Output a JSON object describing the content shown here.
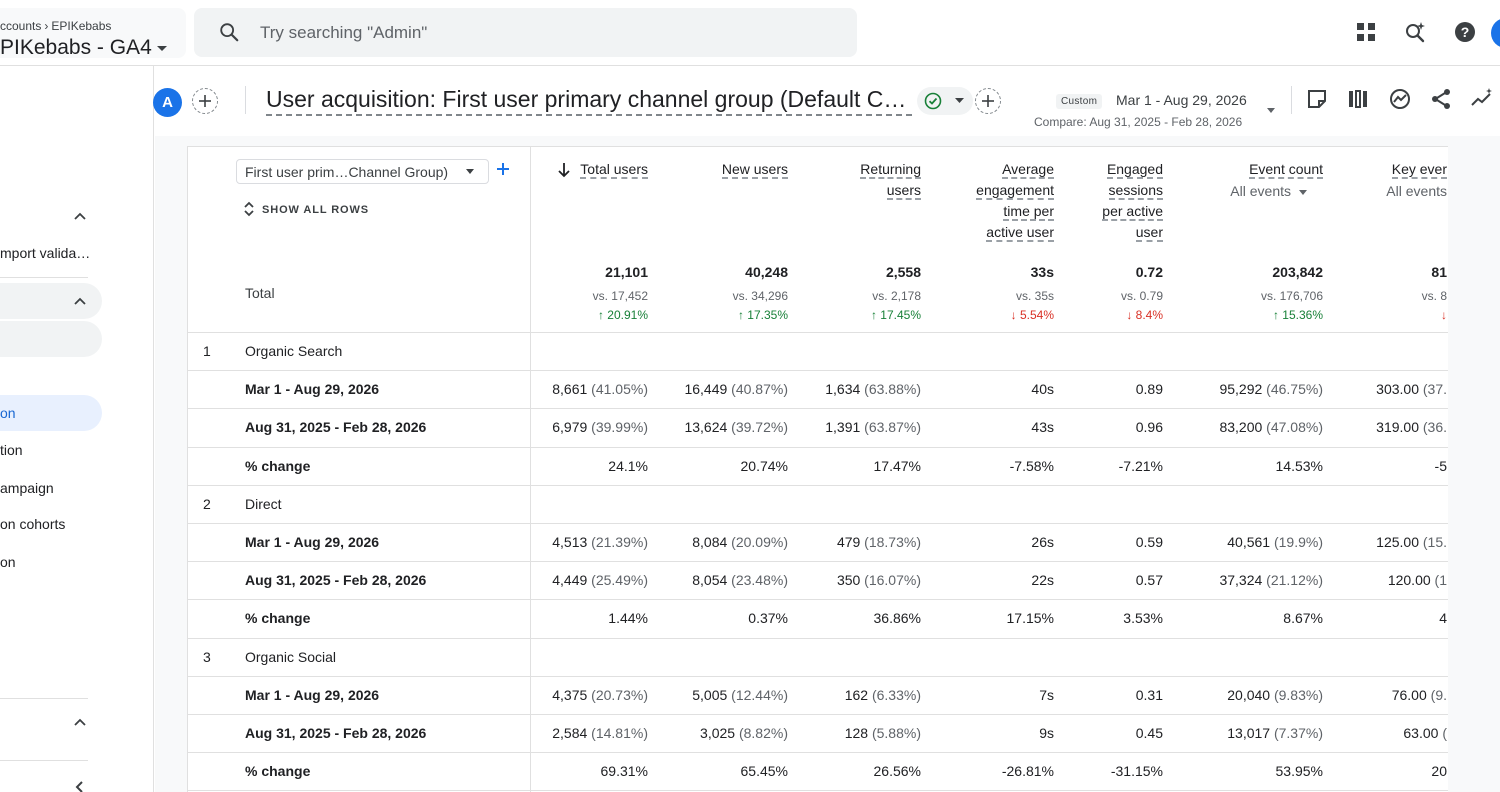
{
  "header": {
    "breadcrumb_parent": "ccounts",
    "breadcrumb_current": "EPIKebabs",
    "property_name": "PIKebabs - GA4",
    "search_placeholder": "Try searching \"Admin\""
  },
  "sidebar": {
    "items": [
      {
        "label": "mport valida…",
        "active": false
      },
      {
        "label": "on",
        "active": true
      },
      {
        "label": "tion",
        "active": false
      },
      {
        "label": "ampaign",
        "active": false
      },
      {
        "label": "on cohorts",
        "active": false
      },
      {
        "label": "on",
        "active": false
      }
    ]
  },
  "report": {
    "avatar_letter": "A",
    "title": "User acquisition: First user primary channel group (Default Ch…",
    "date_tag": "Custom",
    "date_range": "Mar 1 - Aug 29, 2026",
    "compare": "Compare: Aug 31, 2025 - Feb 28, 2026"
  },
  "table": {
    "dimension_select": "First user prim…Channel Group)",
    "show_all_rows": "SHOW ALL ROWS",
    "total_label": "Total",
    "columns": [
      {
        "lines": [
          "Total users"
        ],
        "sub": ""
      },
      {
        "lines": [
          "New users"
        ],
        "sub": ""
      },
      {
        "lines": [
          "Returning",
          "users"
        ],
        "sub": ""
      },
      {
        "lines": [
          "Average",
          "engagement",
          "time per",
          "active user"
        ],
        "sub": ""
      },
      {
        "lines": [
          "Engaged",
          "sessions",
          "per active",
          "user"
        ],
        "sub": ""
      },
      {
        "lines": [
          "Event count"
        ],
        "sub": "All events"
      },
      {
        "lines": [
          "Key ever"
        ],
        "sub": "All events"
      }
    ],
    "totals": [
      {
        "value": "21,101",
        "vs": "vs. 17,452",
        "change": "↑ 20.91%",
        "dir": "up"
      },
      {
        "value": "40,248",
        "vs": "vs. 34,296",
        "change": "↑ 17.35%",
        "dir": "up"
      },
      {
        "value": "2,558",
        "vs": "vs. 2,178",
        "change": "↑ 17.45%",
        "dir": "up"
      },
      {
        "value": "33s",
        "vs": "vs. 35s",
        "change": "↓ 5.54%",
        "dir": "down"
      },
      {
        "value": "0.72",
        "vs": "vs. 0.79",
        "change": "↓ 8.4%",
        "dir": "down"
      },
      {
        "value": "203,842",
        "vs": "vs. 176,706",
        "change": "↑ 15.36%",
        "dir": "up"
      },
      {
        "value": "81",
        "vs": "vs. 8",
        "change": "↓",
        "dir": "down"
      }
    ],
    "groups": [
      {
        "num": "1",
        "name": "Organic Search",
        "rows": [
          {
            "label": "Mar 1 - Aug 29, 2026",
            "cells": [
              [
                "8,661",
                "(41.05%)"
              ],
              [
                "16,449",
                "(40.87%)"
              ],
              [
                "1,634",
                "(63.88%)"
              ],
              [
                "40s",
                ""
              ],
              [
                "0.89",
                ""
              ],
              [
                "95,292",
                "(46.75%)"
              ],
              [
                "303.00",
                "(37."
              ]
            ]
          },
          {
            "label": "Aug 31, 2025 - Feb 28, 2026",
            "cells": [
              [
                "6,979",
                "(39.99%)"
              ],
              [
                "13,624",
                "(39.72%)"
              ],
              [
                "1,391",
                "(63.87%)"
              ],
              [
                "43s",
                ""
              ],
              [
                "0.96",
                ""
              ],
              [
                "83,200",
                "(47.08%)"
              ],
              [
                "319.00",
                "(36."
              ]
            ]
          },
          {
            "label": "% change",
            "cells": [
              [
                "24.1%",
                ""
              ],
              [
                "20.74%",
                ""
              ],
              [
                "17.47%",
                ""
              ],
              [
                "-7.58%",
                ""
              ],
              [
                "-7.21%",
                ""
              ],
              [
                "14.53%",
                ""
              ],
              [
                "-5",
                ""
              ]
            ]
          }
        ]
      },
      {
        "num": "2",
        "name": "Direct",
        "rows": [
          {
            "label": "Mar 1 - Aug 29, 2026",
            "cells": [
              [
                "4,513",
                "(21.39%)"
              ],
              [
                "8,084",
                "(20.09%)"
              ],
              [
                "479",
                "(18.73%)"
              ],
              [
                "26s",
                ""
              ],
              [
                "0.59",
                ""
              ],
              [
                "40,561",
                "(19.9%)"
              ],
              [
                "125.00",
                "(15."
              ]
            ]
          },
          {
            "label": "Aug 31, 2025 - Feb 28, 2026",
            "cells": [
              [
                "4,449",
                "(25.49%)"
              ],
              [
                "8,054",
                "(23.48%)"
              ],
              [
                "350",
                "(16.07%)"
              ],
              [
                "22s",
                ""
              ],
              [
                "0.57",
                ""
              ],
              [
                "37,324",
                "(21.12%)"
              ],
              [
                "120.00",
                "(1"
              ]
            ]
          },
          {
            "label": "% change",
            "cells": [
              [
                "1.44%",
                ""
              ],
              [
                "0.37%",
                ""
              ],
              [
                "36.86%",
                ""
              ],
              [
                "17.15%",
                ""
              ],
              [
                "3.53%",
                ""
              ],
              [
                "8.67%",
                ""
              ],
              [
                "4",
                ""
              ]
            ]
          }
        ]
      },
      {
        "num": "3",
        "name": "Organic Social",
        "rows": [
          {
            "label": "Mar 1 - Aug 29, 2026",
            "cells": [
              [
                "4,375",
                "(20.73%)"
              ],
              [
                "5,005",
                "(12.44%)"
              ],
              [
                "162",
                "(6.33%)"
              ],
              [
                "7s",
                ""
              ],
              [
                "0.31",
                ""
              ],
              [
                "20,040",
                "(9.83%)"
              ],
              [
                "76.00",
                "(9."
              ]
            ]
          },
          {
            "label": "Aug 31, 2025 - Feb 28, 2026",
            "cells": [
              [
                "2,584",
                "(14.81%)"
              ],
              [
                "3,025",
                "(8.82%)"
              ],
              [
                "128",
                "(5.88%)"
              ],
              [
                "9s",
                ""
              ],
              [
                "0.45",
                ""
              ],
              [
                "13,017",
                "(7.37%)"
              ],
              [
                "63.00",
                "("
              ]
            ]
          },
          {
            "label": "% change",
            "cells": [
              [
                "69.31%",
                ""
              ],
              [
                "65.45%",
                ""
              ],
              [
                "26.56%",
                ""
              ],
              [
                "-26.81%",
                ""
              ],
              [
                "-31.15%",
                ""
              ],
              [
                "53.95%",
                ""
              ],
              [
                "20",
                ""
              ]
            ]
          }
        ]
      }
    ]
  },
  "colors": {
    "accent": "#1a73e8",
    "positive": "#188038",
    "negative": "#d93025"
  }
}
